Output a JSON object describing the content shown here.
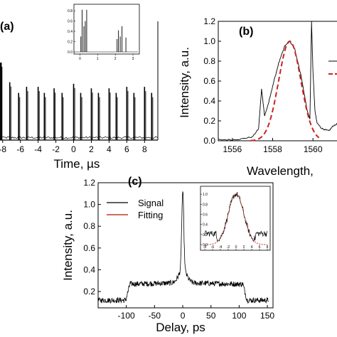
{
  "panels": {
    "a": {
      "label": "(a)"
    },
    "b": {
      "label": "(b)"
    },
    "c": {
      "label": "(c)"
    }
  },
  "chart_data": [
    {
      "id": "a",
      "type": "line",
      "xlabel": "Time, µs",
      "ylabel": "",
      "xlim": [
        -8.3,
        9.5
      ],
      "ylim": [
        0,
        1.0
      ],
      "xticks": [
        "-8",
        "-6",
        "-4",
        "-2",
        "0",
        "2",
        "4",
        "6",
        "8"
      ],
      "pulse_times": [
        -8.2,
        -7.2,
        -6.2,
        -5.3,
        -4.0,
        -3.3,
        -2.2,
        -1.3,
        0.0,
        0.8,
        2.0,
        2.8,
        4.0,
        4.8,
        6.0,
        6.8,
        8.0,
        8.8
      ],
      "pulse_heights": [
        1.0,
        0.76,
        0.62,
        0.7,
        0.7,
        0.62,
        0.68,
        0.62,
        0.74,
        0.62,
        0.68,
        0.62,
        0.68,
        0.62,
        0.7,
        0.62,
        0.7,
        0.62
      ],
      "inset": {
        "xlim": [
          0,
          3
        ],
        "ylim": [
          0,
          0.9
        ],
        "xticks": [
          "0",
          "1",
          "2",
          "3"
        ],
        "yticks": [
          "0.0",
          "0.2",
          "0.4",
          "0.6",
          "0.8"
        ],
        "pulse_times": [
          0.05,
          0.12,
          0.22,
          0.3,
          0.38,
          2.1,
          2.18,
          2.28,
          2.38,
          2.6
        ],
        "pulse_heights": [
          0.3,
          0.82,
          0.5,
          0.6,
          0.82,
          0.25,
          0.42,
          0.3,
          0.5,
          0.28
        ]
      }
    },
    {
      "id": "b",
      "type": "line",
      "xlabel": "Wavelength,",
      "ylabel": "Intensity, a.u.",
      "xlim": [
        1555.3,
        1561.3
      ],
      "ylim": [
        0,
        1.2
      ],
      "xticks": [
        "1556",
        "1558",
        "1560"
      ],
      "yticks": [
        "0.0",
        "0.2",
        "0.4",
        "0.6",
        "0.8",
        "1.0",
        "1.2"
      ],
      "series": [
        {
          "style": "solid-black",
          "x": [
            1555.3,
            1556.0,
            1556.5,
            1557.0,
            1557.3,
            1557.45,
            1557.6,
            1557.8,
            1558.0,
            1558.3,
            1558.6,
            1558.85,
            1559.1,
            1559.4,
            1559.7,
            1559.85,
            1559.93,
            1560.0,
            1560.1,
            1560.2,
            1560.4,
            1560.6,
            1560.8,
            1561.0,
            1561.3
          ],
          "y": [
            0.01,
            0.01,
            0.02,
            0.04,
            0.12,
            0.52,
            0.25,
            0.38,
            0.55,
            0.78,
            0.95,
            1.0,
            0.92,
            0.66,
            0.32,
            0.22,
            1.2,
            0.7,
            0.3,
            0.18,
            0.13,
            0.11,
            0.1,
            0.15,
            0.18
          ]
        },
        {
          "style": "dashed-red",
          "gaussian": {
            "center": 1558.85,
            "amplitude": 1.0,
            "sigma": 0.55
          }
        }
      ]
    },
    {
      "id": "c",
      "type": "line",
      "xlabel": "Delay, ps",
      "ylabel": "Intensity, a.u.",
      "xlim": [
        -150,
        160
      ],
      "ylim": [
        0.05,
        1.2
      ],
      "xticks": [
        "-100",
        "-50",
        "0",
        "50",
        "100",
        "150"
      ],
      "yticks": [
        "0.2",
        "0.4",
        "0.6",
        "0.8",
        "1.0",
        "1.2"
      ],
      "legend": [
        "Signal",
        "Fitting"
      ],
      "legend_position": "top-left",
      "series": [
        {
          "name": "Signal",
          "color": "#000000",
          "pedestal": {
            "left": -97,
            "right": 110,
            "outside": 0.12,
            "inside": 0.28
          },
          "spike": {
            "center": 0,
            "peak": 1.0,
            "width": 1.8
          }
        },
        {
          "name": "Fitting",
          "color": "#c0392b"
        }
      ],
      "inset": {
        "xlim": [
          -8,
          8
        ],
        "ylim": [
          0,
          1.1
        ],
        "xticks": [
          "-8",
          "-6",
          "-4",
          "-2",
          "0",
          "2",
          "4",
          "6",
          "8"
        ],
        "yticks": [
          "0.0",
          "0.2",
          "0.4",
          "0.6",
          "0.8",
          "1.0"
        ],
        "gaussian": {
          "center": 0,
          "amplitude": 1.0,
          "sigma": 2.0
        }
      }
    }
  ]
}
